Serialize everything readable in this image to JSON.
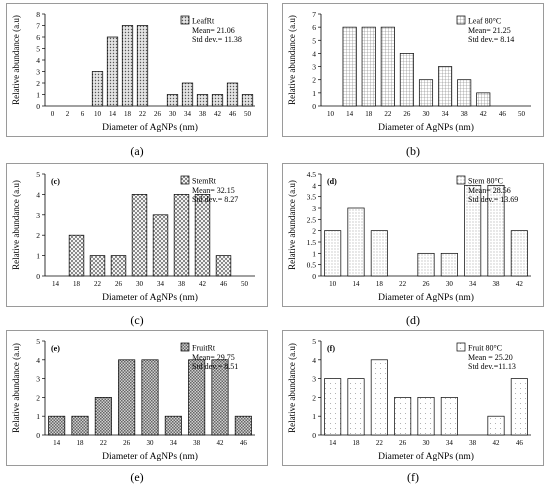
{
  "chart_data": [
    {
      "type": "bar",
      "caption": "(a)",
      "panel_letter": "",
      "x": [
        0,
        2,
        6,
        10,
        14,
        18,
        22,
        26,
        30,
        34,
        38,
        42,
        46,
        50
      ],
      "values": [
        0,
        0,
        0,
        3,
        6,
        7,
        7,
        0,
        1,
        2,
        1,
        1,
        2,
        1
      ],
      "xticks": [
        "0",
        "2",
        "6",
        "10",
        "14",
        "18",
        "22",
        "26",
        "30",
        "34",
        "38",
        "42",
        "46",
        "50"
      ],
      "ylim": [
        0,
        8
      ],
      "ytick_step": 1,
      "xlabel": "Diameter of AgNPs (nm)",
      "ylabel": "Relative abundance (a.u)",
      "legend": {
        "label": "LeafRt",
        "lines": [
          "Mean= 21.06",
          "Std dev.= 11.38"
        ],
        "pattern": "dots"
      },
      "bar_pattern": "dots"
    },
    {
      "type": "bar",
      "caption": "(b)",
      "panel_letter": "",
      "x": [
        10,
        14,
        18,
        22,
        26,
        30,
        34,
        38,
        42,
        46,
        50
      ],
      "values": [
        0,
        6,
        6,
        6,
        4,
        2,
        3,
        2,
        1,
        0,
        0
      ],
      "xticks": [
        "10",
        "14",
        "18",
        "22",
        "26",
        "30",
        "34",
        "38",
        "42",
        "46",
        "50"
      ],
      "ylim": [
        0,
        7
      ],
      "ytick_step": 1,
      "xlabel": "Diameter of AgNPs (nm)",
      "ylabel": "Relative abundance (a.u)",
      "legend": {
        "label": "Leaf 80°C",
        "lines": [
          "Mean= 21.25",
          "Std dev.= 8.14"
        ],
        "pattern": "grid"
      },
      "bar_pattern": "grid"
    },
    {
      "type": "bar",
      "caption": "(c)",
      "panel_letter": "(c)",
      "x": [
        14,
        18,
        22,
        26,
        30,
        34,
        38,
        42,
        46,
        50
      ],
      "values": [
        0,
        2,
        1,
        1,
        4,
        3,
        4,
        4,
        1,
        0
      ],
      "xticks": [
        "14",
        "18",
        "22",
        "26",
        "30",
        "34",
        "38",
        "42",
        "46",
        "50"
      ],
      "ylim": [
        0,
        5
      ],
      "ytick_step": 1,
      "xlabel": "Diameter of AgNPs (nm)",
      "ylabel": "Relative abundance (a.u)",
      "legend": {
        "label": "StemRt",
        "lines": [
          "Mean= 32.15",
          "Std dev.= 8.27"
        ],
        "pattern": "checker"
      },
      "bar_pattern": "checker"
    },
    {
      "type": "bar",
      "caption": "(d)",
      "panel_letter": "(d)",
      "x": [
        10,
        14,
        18,
        22,
        26,
        30,
        34,
        38,
        42
      ],
      "values": [
        2,
        3,
        2,
        0,
        1,
        1,
        4,
        4,
        2
      ],
      "xticks": [
        "10",
        "14",
        "18",
        "22",
        "26",
        "30",
        "34",
        "38",
        "42"
      ],
      "ylim": [
        0,
        4.5
      ],
      "ytick_step": 0.5,
      "xlabel": "Diameter of AgNPs (nm)",
      "ylabel": "Relative abundance (a.u)",
      "legend": {
        "label": "Stem 80°C",
        "lines": [
          "Mean= 28.56",
          "Std dev.= 13.69"
        ],
        "pattern": "fine"
      },
      "bar_pattern": "fine"
    },
    {
      "type": "bar",
      "caption": "(e)",
      "panel_letter": "(e)",
      "x": [
        14,
        18,
        22,
        26,
        30,
        34,
        38,
        42,
        46
      ],
      "values": [
        1,
        1,
        2,
        4,
        4,
        1,
        4,
        4,
        1
      ],
      "xticks": [
        "14",
        "18",
        "22",
        "26",
        "30",
        "34",
        "38",
        "42",
        "46"
      ],
      "ylim": [
        0,
        5
      ],
      "ytick_step": 1,
      "xlabel": "Diameter of AgNPs (nm)",
      "ylabel": "Relative abundance (a.u)",
      "legend": {
        "label": "FruitRt",
        "lines": [
          "Mean= 29.75",
          "Std dev.= 8.51"
        ],
        "pattern": "checker2"
      },
      "bar_pattern": "checker2"
    },
    {
      "type": "bar",
      "caption": "(f)",
      "panel_letter": "(f)",
      "x": [
        14,
        18,
        22,
        26,
        30,
        34,
        38,
        42,
        46
      ],
      "values": [
        3,
        3,
        4,
        2,
        2,
        2,
        0,
        1,
        3
      ],
      "xticks": [
        "14",
        "18",
        "22",
        "26",
        "30",
        "34",
        "38",
        "42",
        "46"
      ],
      "ylim": [
        0,
        5
      ],
      "ytick_step": 1,
      "xlabel": "Diameter of AgNPs (nm)",
      "ylabel": "Relative abundance (a.u)",
      "legend": {
        "label": "Fruit 80°C",
        "lines": [
          "Mean = 25.20",
          "Std dev.=11.13"
        ],
        "pattern": "sparse"
      },
      "bar_pattern": "sparse"
    }
  ]
}
